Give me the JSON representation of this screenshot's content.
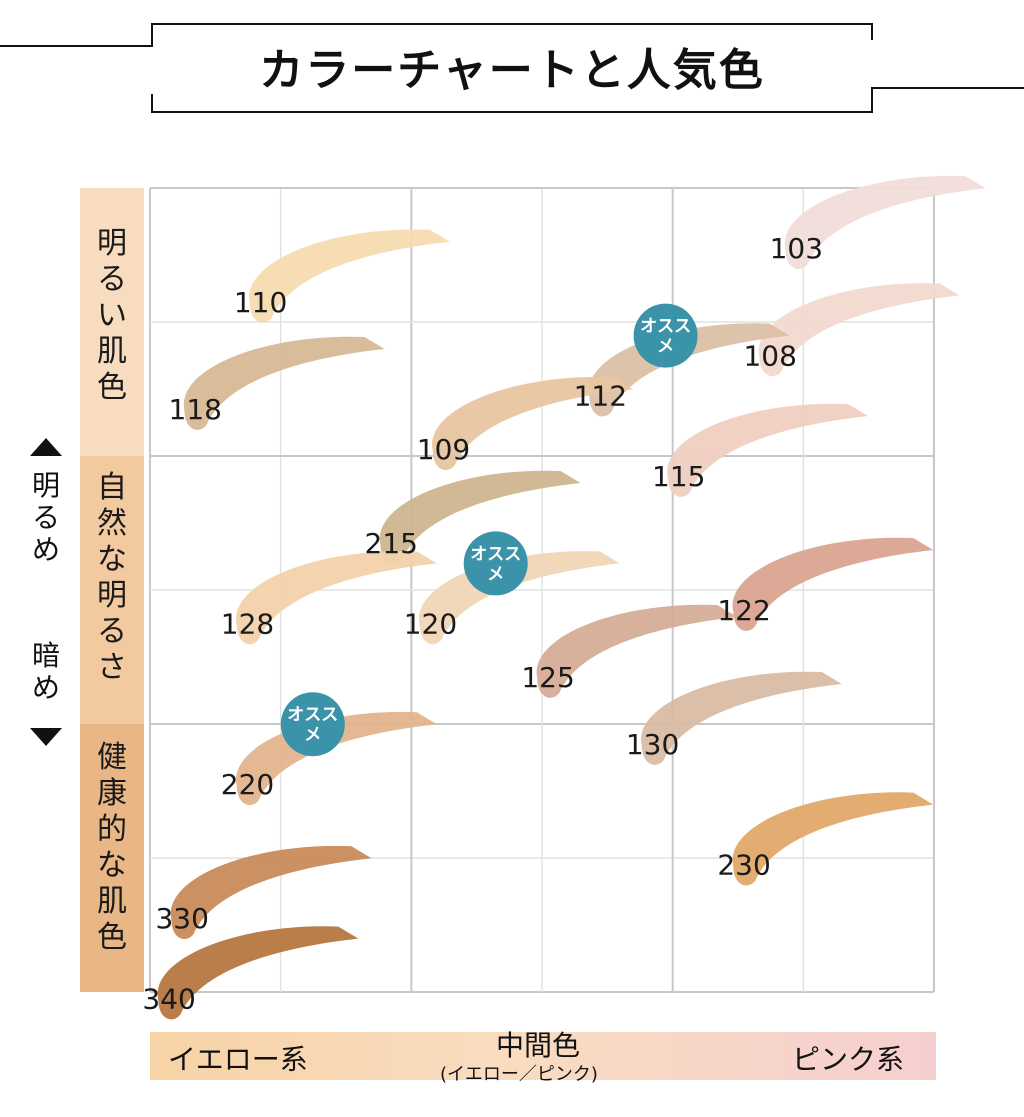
{
  "title": "カラーチャートと人気色",
  "rows": [
    {
      "label": "明るい肌色",
      "color": "#f7dcc0"
    },
    {
      "label": "自然な明るさ",
      "color": "#f3c9a0"
    },
    {
      "label": "健康的な肌色",
      "color": "#e9b685"
    }
  ],
  "side_axis": {
    "top": "明るめ",
    "bottom": "暗め"
  },
  "x_axis": {
    "left": "イエロー系",
    "center": "中間色",
    "center_sub": "(イエロー／ピンク)",
    "right": "ピンク系"
  },
  "badge_text": "オスス\nメ",
  "badge_color": "#3a93a8",
  "chart_data": {
    "type": "scatter",
    "title": "カラーチャートと人気色",
    "x_categories": [
      "イエロー系",
      "中間色",
      "ピンク系"
    ],
    "y_categories": [
      "明るい肌色",
      "自然な明るさ",
      "健康的な肌色"
    ],
    "xlim": [
      0,
      6
    ],
    "ylim": [
      0,
      6
    ],
    "grid": true,
    "points": [
      {
        "label": "103",
        "x": 5.4,
        "y": 5.7,
        "color": "#f1dcd8",
        "recommended": false
      },
      {
        "label": "110",
        "x": 1.3,
        "y": 5.3,
        "color": "#f6dbb0",
        "recommended": false
      },
      {
        "label": "108",
        "x": 5.2,
        "y": 4.9,
        "color": "#f2d9cf",
        "recommended": false
      },
      {
        "label": "112",
        "x": 3.9,
        "y": 4.6,
        "color": "#dcc0a6",
        "recommended": true
      },
      {
        "label": "118",
        "x": 0.8,
        "y": 4.5,
        "color": "#d7b894",
        "recommended": false
      },
      {
        "label": "109",
        "x": 2.7,
        "y": 4.2,
        "color": "#e8c6a0",
        "recommended": false
      },
      {
        "label": "115",
        "x": 4.5,
        "y": 4.0,
        "color": "#f0cfc0",
        "recommended": false
      },
      {
        "label": "215",
        "x": 2.3,
        "y": 3.5,
        "color": "#cdb58e",
        "recommended": false
      },
      {
        "label": "120",
        "x": 2.6,
        "y": 2.9,
        "color": "#f1d6b6",
        "recommended": true
      },
      {
        "label": "122",
        "x": 5.0,
        "y": 3.0,
        "color": "#d9a490",
        "recommended": false
      },
      {
        "label": "128",
        "x": 1.2,
        "y": 2.9,
        "color": "#f2d2aa",
        "recommended": false
      },
      {
        "label": "125",
        "x": 3.5,
        "y": 2.5,
        "color": "#d6ad98",
        "recommended": false
      },
      {
        "label": "130",
        "x": 4.3,
        "y": 2.0,
        "color": "#d9bca4",
        "recommended": false
      },
      {
        "label": "220",
        "x": 1.2,
        "y": 1.7,
        "color": "#e2b48c",
        "recommended": true
      },
      {
        "label": "230",
        "x": 5.0,
        "y": 1.1,
        "color": "#e2a869",
        "recommended": false
      },
      {
        "label": "330",
        "x": 0.7,
        "y": 0.7,
        "color": "#c88b5a",
        "recommended": false
      },
      {
        "label": "340",
        "x": 0.6,
        "y": 0.1,
        "color": "#b5773f",
        "recommended": false
      }
    ]
  }
}
